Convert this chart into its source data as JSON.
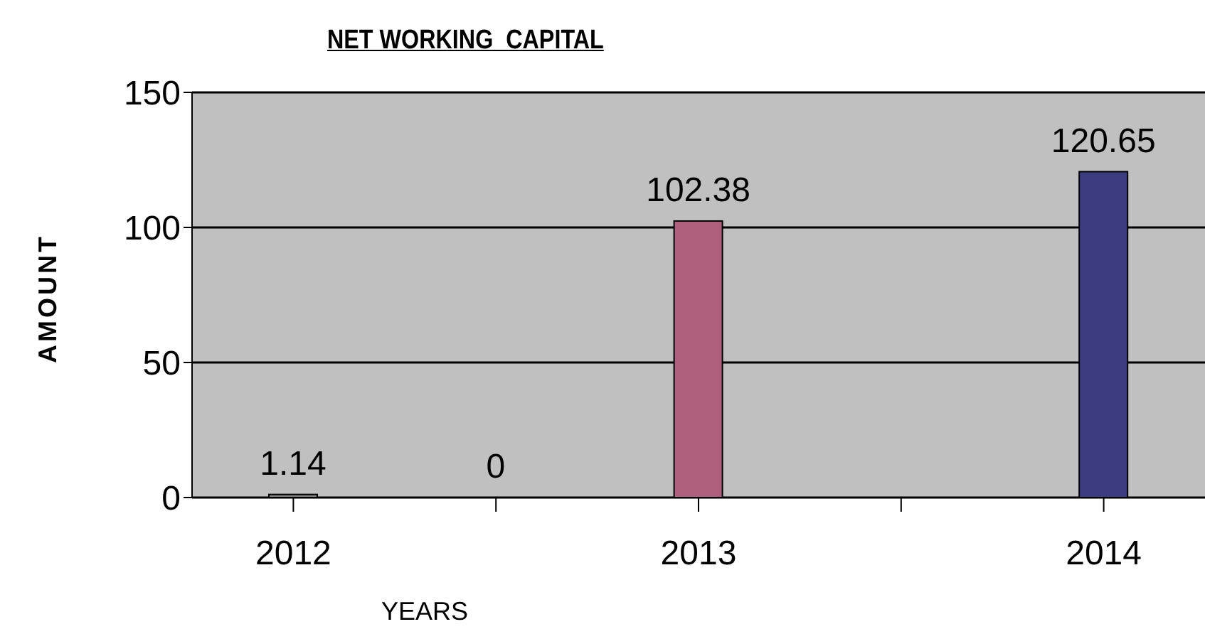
{
  "chart_data": {
    "type": "bar",
    "title": "NET WORKING  CAPITAL",
    "xlabel": "YEARS",
    "ylabel": "AMOUNT",
    "categories": [
      "2012",
      null,
      "2013",
      null,
      "2014"
    ],
    "values": [
      1.14,
      0,
      102.38,
      null,
      120.65
    ],
    "colors": [
      "#7f7f7f",
      "#7f7f7f",
      "#b0607f",
      "#7f7f7f",
      "#3c3c80"
    ],
    "ylim": [
      0,
      150
    ],
    "yticks": [
      0,
      50,
      100,
      150
    ],
    "grid": "y",
    "data_labels": true
  }
}
